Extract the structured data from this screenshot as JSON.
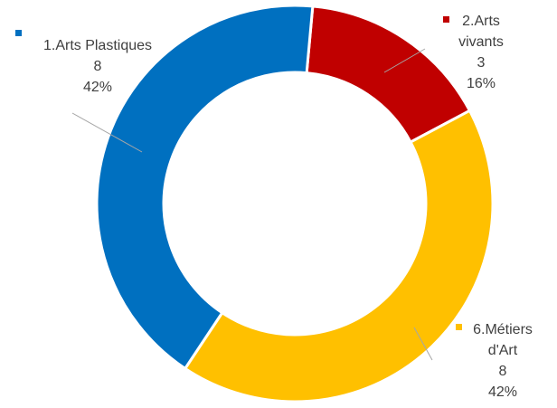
{
  "chart_data": {
    "type": "pie",
    "style": "donut",
    "title": "",
    "slices": [
      {
        "name": "1.Arts Plastiques",
        "value": 8,
        "percent": "42%",
        "color": "#0070C0"
      },
      {
        "name": "2.Arts vivants",
        "label_lines": [
          "2.Arts",
          "vivants"
        ],
        "value": 3,
        "percent": "16%",
        "color": "#C00000"
      },
      {
        "name": "6.Métiers d'Art",
        "label_lines": [
          "6.Métiers",
          "d'Art"
        ],
        "value": 8,
        "percent": "42%",
        "color": "#FFC000"
      }
    ],
    "legend": "inline labels",
    "grid": false
  }
}
